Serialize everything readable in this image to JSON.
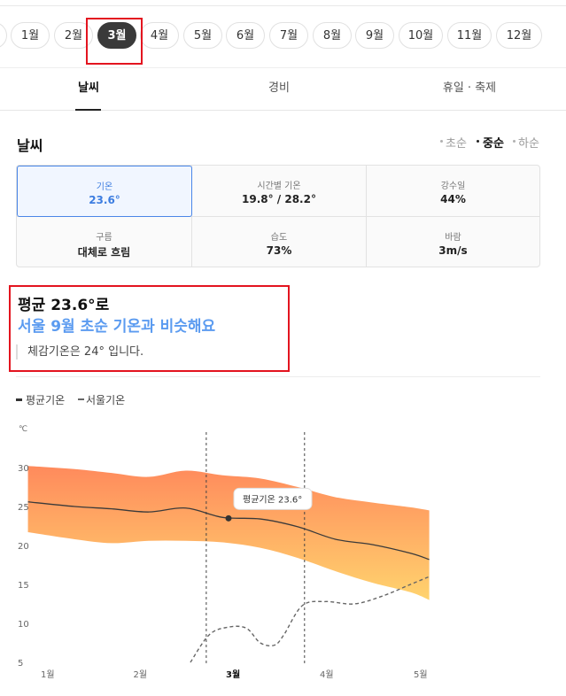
{
  "months": {
    "items": [
      "",
      "1월",
      "2월",
      "3월",
      "4월",
      "5월",
      "6월",
      "7월",
      "8월",
      "9월",
      "10월",
      "11월",
      "12월"
    ],
    "selected": "3월"
  },
  "tabs": [
    "날씨",
    "경비",
    "휴일 · 축제"
  ],
  "weather": {
    "title": "날씨",
    "segments": [
      "초순",
      "중순",
      "하순"
    ],
    "active_segment": "중순",
    "cells": [
      {
        "label": "기온",
        "value": "23.6°"
      },
      {
        "label": "시간별 기온",
        "value": "19.8° / 28.2°"
      },
      {
        "label": "강수일",
        "value": "44%"
      },
      {
        "label": "구름",
        "value": "대체로 흐림"
      },
      {
        "label": "습도",
        "value": "73%"
      },
      {
        "label": "바람",
        "value": "3m/s"
      }
    ]
  },
  "summary": {
    "line1": "평균 23.6°로",
    "line2": "서울 9월 초순 기온과 비슷해요",
    "line3": "체감기온은 24° 입니다."
  },
  "legend": [
    "평균기온",
    "서울기온"
  ],
  "chart_data": {
    "type": "line",
    "ylabel": "℃",
    "ylim": [
      5,
      32
    ],
    "yticks": [
      5,
      10,
      15,
      20,
      25,
      30
    ],
    "x_ticks": [
      "1월",
      "2월",
      "3월",
      "4월",
      "5월"
    ],
    "tooltip": "평균기온 23.6°",
    "highlight_x": 3,
    "series": [
      {
        "name": "평균기온",
        "x": [
          0.9,
          1.3,
          1.7,
          2.1,
          2.5,
          2.9,
          3.3,
          3.7,
          4.1,
          4.5,
          4.9,
          5.1
        ],
        "values": [
          25.6,
          25.0,
          24.7,
          24.3,
          24.8,
          23.6,
          23.4,
          22.4,
          20.8,
          20.1,
          19.0,
          18.2
        ]
      },
      {
        "name": "서울기온",
        "x": [
          2.55,
          2.75,
          2.95,
          3.15,
          3.3,
          3.45,
          3.55,
          3.75,
          4.0,
          4.3,
          4.6,
          4.9,
          5.1
        ],
        "values": [
          5.0,
          8.5,
          9.5,
          9.4,
          7.5,
          7.2,
          8.5,
          12.3,
          12.8,
          12.5,
          13.5,
          15.0,
          16.0
        ]
      },
      {
        "name": "최고",
        "x": [
          0.9,
          1.3,
          1.7,
          2.1,
          2.5,
          2.9,
          3.3,
          3.7,
          4.1,
          4.5,
          4.9,
          5.1
        ],
        "values": [
          30.2,
          29.8,
          29.3,
          28.8,
          29.6,
          29.0,
          28.6,
          27.5,
          26.2,
          25.5,
          24.9,
          24.5
        ]
      },
      {
        "name": "최저",
        "x": [
          0.9,
          1.3,
          1.7,
          2.1,
          2.5,
          2.9,
          3.3,
          3.7,
          4.1,
          4.5,
          4.9,
          5.1
        ],
        "values": [
          21.7,
          20.8,
          20.3,
          20.6,
          20.6,
          20.4,
          19.7,
          18.4,
          16.7,
          15.2,
          14.0,
          13.0
        ]
      }
    ]
  },
  "colors": {
    "accent": "#3d7de0",
    "summary_blue": "#5b9bf0",
    "band_top": "#ff8a5c",
    "band_bottom": "#ffd36e",
    "highlight": "#e3141f"
  }
}
